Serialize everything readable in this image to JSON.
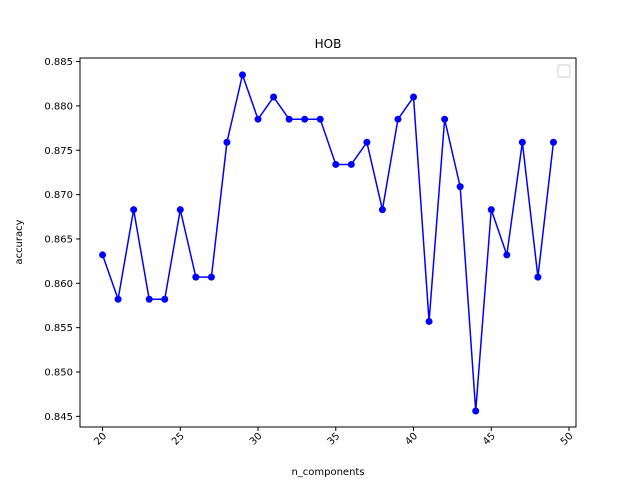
{
  "chart_data": {
    "type": "line",
    "title": "HOB",
    "xlabel": "n_components",
    "ylabel": "accuracy",
    "xlim": [
      18.55,
      50.45
    ],
    "ylim": [
      0.8438,
      0.8854
    ],
    "xticks": [
      20,
      25,
      30,
      35,
      40,
      45,
      50
    ],
    "yticks": [
      0.845,
      0.85,
      0.855,
      0.86,
      0.865,
      0.87,
      0.875,
      0.88,
      0.885
    ],
    "ytick_labels": [
      "0.845",
      "0.850",
      "0.855",
      "0.860",
      "0.865",
      "0.870",
      "0.875",
      "0.880",
      "0.885"
    ],
    "xtick_rotation": 45,
    "grid": false,
    "legend": "top-right (empty)",
    "series": [
      {
        "color": "#0000ff",
        "marker": "circle",
        "x": [
          20,
          21,
          22,
          23,
          24,
          25,
          26,
          27,
          28,
          29,
          30,
          31,
          32,
          33,
          34,
          35,
          36,
          37,
          38,
          39,
          40,
          41,
          42,
          43,
          44,
          45,
          46,
          47,
          48,
          49
        ],
        "y": [
          0.8632,
          0.8582,
          0.8683,
          0.8582,
          0.8582,
          0.8683,
          0.8607,
          0.8607,
          0.8759,
          0.8835,
          0.8785,
          0.881,
          0.8785,
          0.8785,
          0.8785,
          0.8734,
          0.8734,
          0.8759,
          0.8683,
          0.8785,
          0.881,
          0.8557,
          0.8785,
          0.8709,
          0.8456,
          0.8683,
          0.8632,
          0.8759,
          0.8607,
          0.8759
        ]
      }
    ]
  }
}
